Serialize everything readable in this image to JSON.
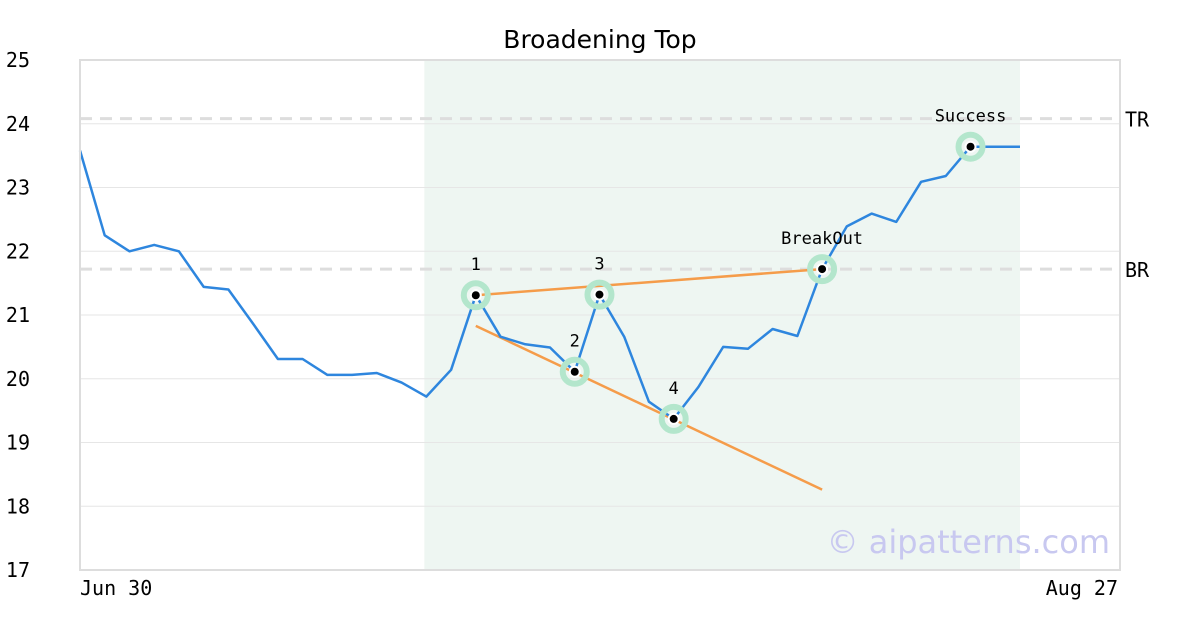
{
  "chart_data": {
    "type": "line",
    "title": "Broadening Top",
    "ylim": [
      17,
      25
    ],
    "yticks": [
      17,
      18,
      19,
      20,
      21,
      22,
      23,
      24,
      25
    ],
    "x_labels": {
      "start": "Jun 30",
      "end": "Aug 27"
    },
    "grid": true,
    "pattern_window": {
      "start_index": 14,
      "end_index": 38
    },
    "series": [
      {
        "values": [
          23.58,
          22.25,
          22.0,
          22.1,
          22.0,
          21.44,
          21.4,
          20.86,
          20.31,
          20.31,
          20.06,
          20.06,
          20.09,
          19.94,
          19.72,
          20.14,
          21.31,
          20.66,
          20.54,
          20.49,
          20.11,
          21.32,
          20.66,
          19.64,
          19.37,
          19.87,
          20.5,
          20.47,
          20.78,
          20.67,
          21.72,
          22.39,
          22.59,
          22.46,
          23.09,
          23.18,
          23.64,
          23.64,
          23.64
        ]
      }
    ],
    "levels": [
      {
        "label": "TR",
        "value": 24.08
      },
      {
        "label": "BR",
        "value": 21.72
      }
    ],
    "trendlines": [
      {
        "from": [
          16,
          21.31
        ],
        "to": [
          30,
          21.72
        ]
      },
      {
        "from": [
          16,
          20.83
        ],
        "to": [
          30,
          18.26
        ]
      }
    ],
    "markers": [
      {
        "index": 16,
        "value": 21.31,
        "label": "1"
      },
      {
        "index": 20,
        "value": 20.11,
        "label": "2"
      },
      {
        "index": 21,
        "value": 21.32,
        "label": "3"
      },
      {
        "index": 24,
        "value": 19.37,
        "label": "4"
      },
      {
        "index": 30,
        "value": 21.72,
        "label": "BreakOut"
      },
      {
        "index": 36,
        "value": 23.64,
        "label": "Success"
      }
    ],
    "watermark": "© aipatterns.com",
    "colors": {
      "line": "#2e86de",
      "trend": "#f59c4a",
      "highlight": "#eef6f2",
      "marker_halo": "#b3e6cc",
      "level_line": "#dddddd",
      "grid": "#e6e6e6",
      "frame": "#dddddd"
    }
  }
}
